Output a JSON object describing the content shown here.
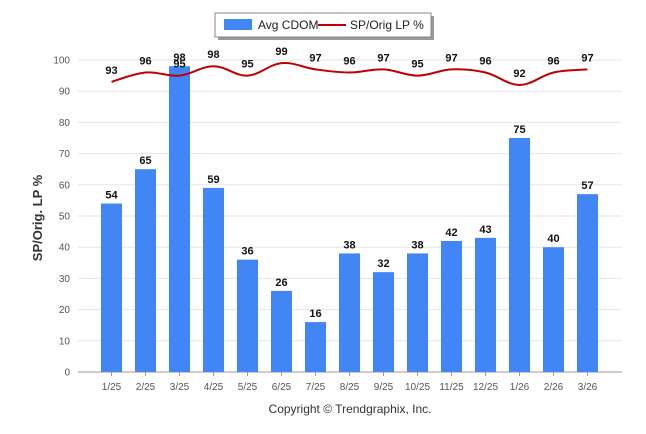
{
  "chart_data": {
    "type": "bar",
    "categories": [
      "1/25",
      "2/25",
      "3/25",
      "4/25",
      "5/25",
      "6/25",
      "7/25",
      "8/25",
      "9/25",
      "10/25",
      "11/25",
      "12/25",
      "1/26",
      "2/26",
      "3/26"
    ],
    "series": [
      {
        "name": "Avg CDOM",
        "kind": "bar",
        "color": "#4285f4",
        "values": [
          54,
          65,
          98,
          59,
          36,
          26,
          16,
          38,
          32,
          38,
          42,
          43,
          75,
          40,
          57
        ]
      },
      {
        "name": "SP/Orig LP %",
        "kind": "line",
        "color": "#c00000",
        "values": [
          93,
          96,
          95,
          98,
          95,
          99,
          97,
          96,
          97,
          95,
          97,
          96,
          92,
          96,
          97
        ]
      }
    ],
    "ylabel": "SP/Orig. LP %",
    "ylim": [
      0,
      100
    ],
    "yticks": [
      0,
      10,
      20,
      30,
      40,
      50,
      60,
      70,
      80,
      90,
      100
    ],
    "grid": true,
    "legend_position": "top-center",
    "footer": "Copyright © Trendgraphix, Inc."
  }
}
